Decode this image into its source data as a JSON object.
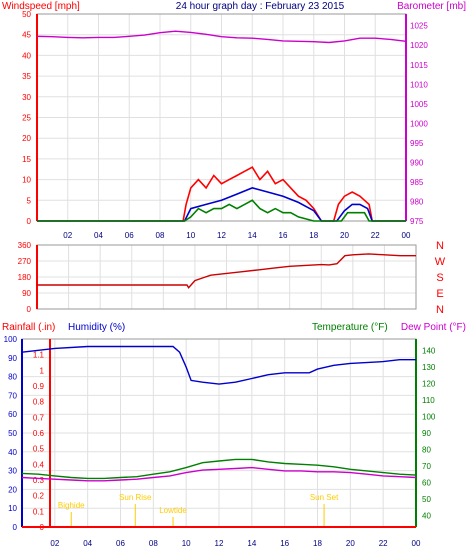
{
  "chart_data": [
    {
      "type": "line",
      "title": "24 hour graph day : February 23 2015",
      "ylabel_left": "Windspeed [mph]",
      "ylabel_right": "Barometer [mb]",
      "x_ticks": [
        "02",
        "04",
        "06",
        "08",
        "10",
        "12",
        "14",
        "16",
        "18",
        "20",
        "22",
        "00"
      ],
      "y_left_ticks": [
        "0",
        "5",
        "10",
        "15",
        "20",
        "25",
        "30",
        "35",
        "40",
        "45",
        "50"
      ],
      "y_left_lim": [
        0,
        50
      ],
      "y_right_ticks": [
        "975",
        "980",
        "985",
        "990",
        "995",
        "1000",
        "1005",
        "1010",
        "1015",
        "1020",
        "1025"
      ],
      "y_right_lim": [
        975,
        1028
      ],
      "grid": true,
      "series": [
        {
          "key": "barometer",
          "axis": "right",
          "color": "#cc00cc",
          "points": [
            [
              0,
              1022.3
            ],
            [
              1,
              1022.2
            ],
            [
              2,
              1022.0
            ],
            [
              3,
              1021.9
            ],
            [
              4,
              1022.0
            ],
            [
              5,
              1022.0
            ],
            [
              6,
              1022.3
            ],
            [
              7,
              1022.6
            ],
            [
              8,
              1023.2
            ],
            [
              9,
              1023.6
            ],
            [
              10,
              1023.3
            ],
            [
              11,
              1022.8
            ],
            [
              12,
              1022.2
            ],
            [
              13,
              1021.9
            ],
            [
              14,
              1021.8
            ],
            [
              15,
              1021.5
            ],
            [
              16,
              1021.1
            ],
            [
              17,
              1021.0
            ],
            [
              18,
              1020.9
            ],
            [
              19,
              1020.7
            ],
            [
              20,
              1021.1
            ],
            [
              21,
              1021.8
            ],
            [
              22,
              1021.8
            ],
            [
              23,
              1021.5
            ],
            [
              24,
              1021.0
            ]
          ]
        },
        {
          "key": "gust",
          "axis": "left",
          "color": "#ff0000",
          "points": [
            [
              0,
              0
            ],
            [
              9.5,
              0
            ],
            [
              9.7,
              4
            ],
            [
              10,
              8
            ],
            [
              10.5,
              10
            ],
            [
              11,
              8
            ],
            [
              11.5,
              11
            ],
            [
              12,
              9
            ],
            [
              12.5,
              10
            ],
            [
              13,
              11
            ],
            [
              13.5,
              12
            ],
            [
              14,
              13
            ],
            [
              14.5,
              10
            ],
            [
              15,
              12
            ],
            [
              15.5,
              9
            ],
            [
              16,
              10
            ],
            [
              16.5,
              8
            ],
            [
              17,
              6
            ],
            [
              17.5,
              5
            ],
            [
              18,
              3
            ],
            [
              18.5,
              0
            ],
            [
              19.3,
              0
            ],
            [
              19.6,
              4
            ],
            [
              20,
              6
            ],
            [
              20.5,
              7
            ],
            [
              21,
              6
            ],
            [
              21.3,
              5
            ],
            [
              21.6,
              4
            ],
            [
              21.8,
              0
            ],
            [
              24,
              0
            ]
          ]
        },
        {
          "key": "average",
          "axis": "left",
          "color": "#0000cc",
          "points": [
            [
              0,
              0
            ],
            [
              9.6,
              0
            ],
            [
              10,
              3
            ],
            [
              11,
              4
            ],
            [
              12,
              5
            ],
            [
              13,
              6.5
            ],
            [
              14,
              8
            ],
            [
              15,
              7
            ],
            [
              16,
              6
            ],
            [
              17,
              4.5
            ],
            [
              18,
              2.5
            ],
            [
              18.5,
              0
            ],
            [
              19.5,
              0
            ],
            [
              20,
              2.5
            ],
            [
              20.5,
              4
            ],
            [
              21,
              4
            ],
            [
              21.5,
              3
            ],
            [
              21.8,
              0
            ],
            [
              24,
              0
            ]
          ]
        },
        {
          "key": "wind_green",
          "axis": "left",
          "color": "#008000",
          "points": [
            [
              0,
              0
            ],
            [
              9.6,
              0
            ],
            [
              10,
              1
            ],
            [
              10.5,
              3
            ],
            [
              11,
              2
            ],
            [
              11.5,
              3
            ],
            [
              12,
              3
            ],
            [
              12.5,
              4
            ],
            [
              13,
              3
            ],
            [
              13.5,
              4
            ],
            [
              14,
              5
            ],
            [
              14.5,
              3
            ],
            [
              15,
              2
            ],
            [
              15.5,
              3
            ],
            [
              16,
              2
            ],
            [
              16.5,
              2
            ],
            [
              17,
              1
            ],
            [
              18,
              0
            ],
            [
              19.8,
              0
            ],
            [
              20.2,
              2
            ],
            [
              20.8,
              2
            ],
            [
              21.3,
              2
            ],
            [
              21.6,
              0
            ],
            [
              24,
              0
            ]
          ]
        }
      ]
    },
    {
      "type": "line",
      "ylabel_right": [
        "N",
        "W",
        "S",
        "E",
        "N"
      ],
      "y_left_ticks": [
        "0",
        "90",
        "180",
        "270",
        "360"
      ],
      "y_left_lim": [
        0,
        360
      ],
      "x_ticks": [],
      "series": [
        {
          "key": "wind_direction",
          "color": "#cc0000",
          "points": [
            [
              0,
              135
            ],
            [
              9.5,
              135
            ],
            [
              9.6,
              120
            ],
            [
              9.8,
              140
            ],
            [
              10,
              160
            ],
            [
              10.5,
              175
            ],
            [
              11,
              190
            ],
            [
              12,
              200
            ],
            [
              13,
              210
            ],
            [
              14,
              220
            ],
            [
              15,
              230
            ],
            [
              16,
              240
            ],
            [
              17,
              245
            ],
            [
              18,
              250
            ],
            [
              18.5,
              248
            ],
            [
              19,
              255
            ],
            [
              19.5,
              300
            ],
            [
              20,
              305
            ],
            [
              21,
              310
            ],
            [
              22,
              305
            ],
            [
              23,
              300
            ],
            [
              24,
              300
            ]
          ]
        }
      ]
    },
    {
      "type": "line",
      "label_rainfall": "Rainfall (.in)",
      "label_humidity": "Humidity (%)",
      "label_temperature": "Temperature (°F)",
      "label_dewpoint": "Dew Point (°F)",
      "x_ticks": [
        "02",
        "04",
        "06",
        "08",
        "10",
        "12",
        "14",
        "16",
        "18",
        "20",
        "22",
        "00"
      ],
      "y_left_ticks": [
        "0",
        "10",
        "20",
        "30",
        "40",
        "50",
        "60",
        "70",
        "80",
        "90",
        "100"
      ],
      "y_left_lim": [
        0,
        100
      ],
      "y_mid_ticks": [
        "0",
        "0.1",
        "0.2",
        "0.3",
        "0.4",
        "0.5",
        "0.6",
        "0.7",
        "0.8",
        "0.9",
        "1",
        "1.1"
      ],
      "y_mid_lim": [
        0,
        1.2
      ],
      "y_right_ticks": [
        "40",
        "50",
        "60",
        "70",
        "80",
        "90",
        "100",
        "110",
        "120",
        "130",
        "140"
      ],
      "y_right_lim": [
        33,
        147
      ],
      "annotations": [
        {
          "text": "Bighide",
          "x": 3.0
        },
        {
          "text": "Sun Rise",
          "x": 6.9
        },
        {
          "text": "Lowtide",
          "x": 9.2
        },
        {
          "text": "Sun Set",
          "x": 18.4
        }
      ],
      "series": [
        {
          "key": "humidity",
          "axis": "left",
          "color": "#0000cc",
          "points": [
            [
              0,
              93
            ],
            [
              1,
              94
            ],
            [
              2,
              95
            ],
            [
              4,
              96
            ],
            [
              6,
              96
            ],
            [
              8,
              96
            ],
            [
              9.2,
              96
            ],
            [
              9.6,
              93
            ],
            [
              10,
              85
            ],
            [
              10.3,
              78
            ],
            [
              11,
              77
            ],
            [
              12,
              76
            ],
            [
              13,
              77
            ],
            [
              14,
              79
            ],
            [
              15,
              81
            ],
            [
              16,
              82
            ],
            [
              17,
              82
            ],
            [
              17.5,
              82
            ],
            [
              18,
              84
            ],
            [
              19,
              86
            ],
            [
              20,
              87
            ],
            [
              22,
              88
            ],
            [
              23,
              89
            ],
            [
              24,
              89
            ]
          ]
        },
        {
          "key": "temperature",
          "axis": "right",
          "color": "#008000",
          "points": [
            [
              0,
              65.5
            ],
            [
              1,
              65
            ],
            [
              2,
              64
            ],
            [
              3,
              63
            ],
            [
              4,
              62.5
            ],
            [
              5,
              62.5
            ],
            [
              6,
              63
            ],
            [
              7,
              63.5
            ],
            [
              8,
              65
            ],
            [
              9,
              66.5
            ],
            [
              10,
              69
            ],
            [
              11,
              72
            ],
            [
              12,
              73
            ],
            [
              13,
              74
            ],
            [
              14,
              74
            ],
            [
              15,
              72.5
            ],
            [
              16,
              71.5
            ],
            [
              17,
              71
            ],
            [
              18,
              70.5
            ],
            [
              19,
              69.5
            ],
            [
              20,
              68
            ],
            [
              21,
              67
            ],
            [
              22,
              66
            ],
            [
              23,
              65
            ],
            [
              24,
              64.5
            ]
          ]
        },
        {
          "key": "dew_point",
          "axis": "right",
          "color": "#cc00cc",
          "points": [
            [
              0,
              63
            ],
            [
              1,
              62.5
            ],
            [
              2,
              62
            ],
            [
              3,
              61.5
            ],
            [
              4,
              61
            ],
            [
              5,
              61
            ],
            [
              6,
              61.5
            ],
            [
              7,
              62
            ],
            [
              8,
              63
            ],
            [
              9,
              64
            ],
            [
              10,
              66
            ],
            [
              11,
              67.5
            ],
            [
              12,
              68
            ],
            [
              13,
              68.5
            ],
            [
              14,
              69
            ],
            [
              15,
              68
            ],
            [
              16,
              67
            ],
            [
              17,
              67
            ],
            [
              18,
              66.5
            ],
            [
              19,
              66.5
            ],
            [
              20,
              66
            ],
            [
              21,
              65
            ],
            [
              22,
              64
            ],
            [
              23,
              63.5
            ],
            [
              24,
              63
            ]
          ]
        },
        {
          "key": "rainfall",
          "axis": "mid",
          "color": "#ff0000",
          "points": [
            [
              0,
              0
            ],
            [
              24,
              0
            ]
          ]
        }
      ]
    }
  ]
}
